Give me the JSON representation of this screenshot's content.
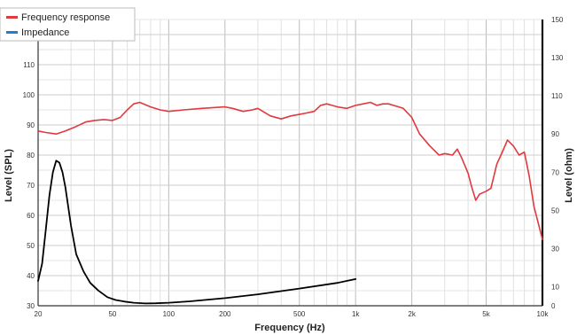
{
  "chart_data": {
    "type": "line",
    "title": "",
    "xlabel": "Frequency (Hz)",
    "ylabel_left": "Level (SPL)",
    "ylabel_right": "Level (ohm)",
    "x_scale": "log",
    "xlim": [
      20,
      10000
    ],
    "ylim_left": [
      30,
      125
    ],
    "ylim_right": [
      0,
      150
    ],
    "x_ticks": [
      20,
      50,
      100,
      200,
      500,
      1000,
      2000,
      5000,
      10000
    ],
    "x_tick_labels": [
      "20",
      "50",
      "100",
      "200",
      "500",
      "1k",
      "2k",
      "5k",
      "10k"
    ],
    "y_left_ticks": [
      30,
      40,
      50,
      60,
      70,
      80,
      90,
      100,
      110,
      120
    ],
    "y_right_ticks": [
      0,
      10,
      30,
      50,
      70,
      90,
      110,
      130,
      150
    ],
    "grid": true,
    "legend_position": "top-left",
    "series": [
      {
        "name": "Frequency response",
        "axis": "left",
        "color": "#e0393e",
        "x": [
          20,
          22,
          25,
          28,
          32,
          36,
          40,
          45,
          50,
          55,
          60,
          65,
          70,
          80,
          90,
          100,
          120,
          150,
          200,
          220,
          250,
          280,
          300,
          350,
          400,
          450,
          500,
          550,
          600,
          650,
          700,
          750,
          800,
          900,
          1000,
          1100,
          1200,
          1300,
          1400,
          1500,
          1700,
          1800,
          2000,
          2200,
          2500,
          2800,
          3000,
          3300,
          3500,
          3700,
          4000,
          4200,
          4400,
          4600,
          5000,
          5300,
          5700,
          6000,
          6500,
          7000,
          7500,
          8000,
          8500,
          9000,
          10000
        ],
        "values": [
          88,
          87.5,
          87,
          88,
          89.5,
          91,
          91.5,
          91.8,
          91.5,
          92.5,
          95,
          97,
          97.5,
          96,
          95,
          94.5,
          95,
          95.5,
          96,
          95.5,
          94.5,
          95,
          95.5,
          93,
          92,
          93,
          93.5,
          94,
          94.5,
          96.5,
          97,
          96.5,
          96,
          95.5,
          96.5,
          97,
          97.5,
          96.5,
          97,
          97,
          96,
          95.5,
          92.5,
          87,
          83,
          80,
          80.5,
          80,
          82,
          79,
          74,
          69,
          65,
          67,
          68,
          69,
          77,
          80,
          85,
          83,
          80,
          81,
          73,
          63,
          52
        ]
      },
      {
        "name": "Impedance",
        "axis": "right",
        "color": "#000000",
        "x": [
          20,
          21,
          22,
          23,
          24,
          25,
          26,
          27,
          28,
          30,
          32,
          35,
          38,
          42,
          47,
          52,
          58,
          65,
          75,
          85,
          100,
          130,
          200,
          300,
          500,
          800,
          1000
        ],
        "values": [
          13,
          22,
          40,
          58,
          70,
          76,
          75,
          70,
          62,
          42,
          27,
          18,
          12,
          8,
          4.5,
          3,
          2.2,
          1.6,
          1.2,
          1.3,
          1.6,
          2.3,
          4,
          6,
          9,
          12,
          14
        ]
      }
    ]
  }
}
